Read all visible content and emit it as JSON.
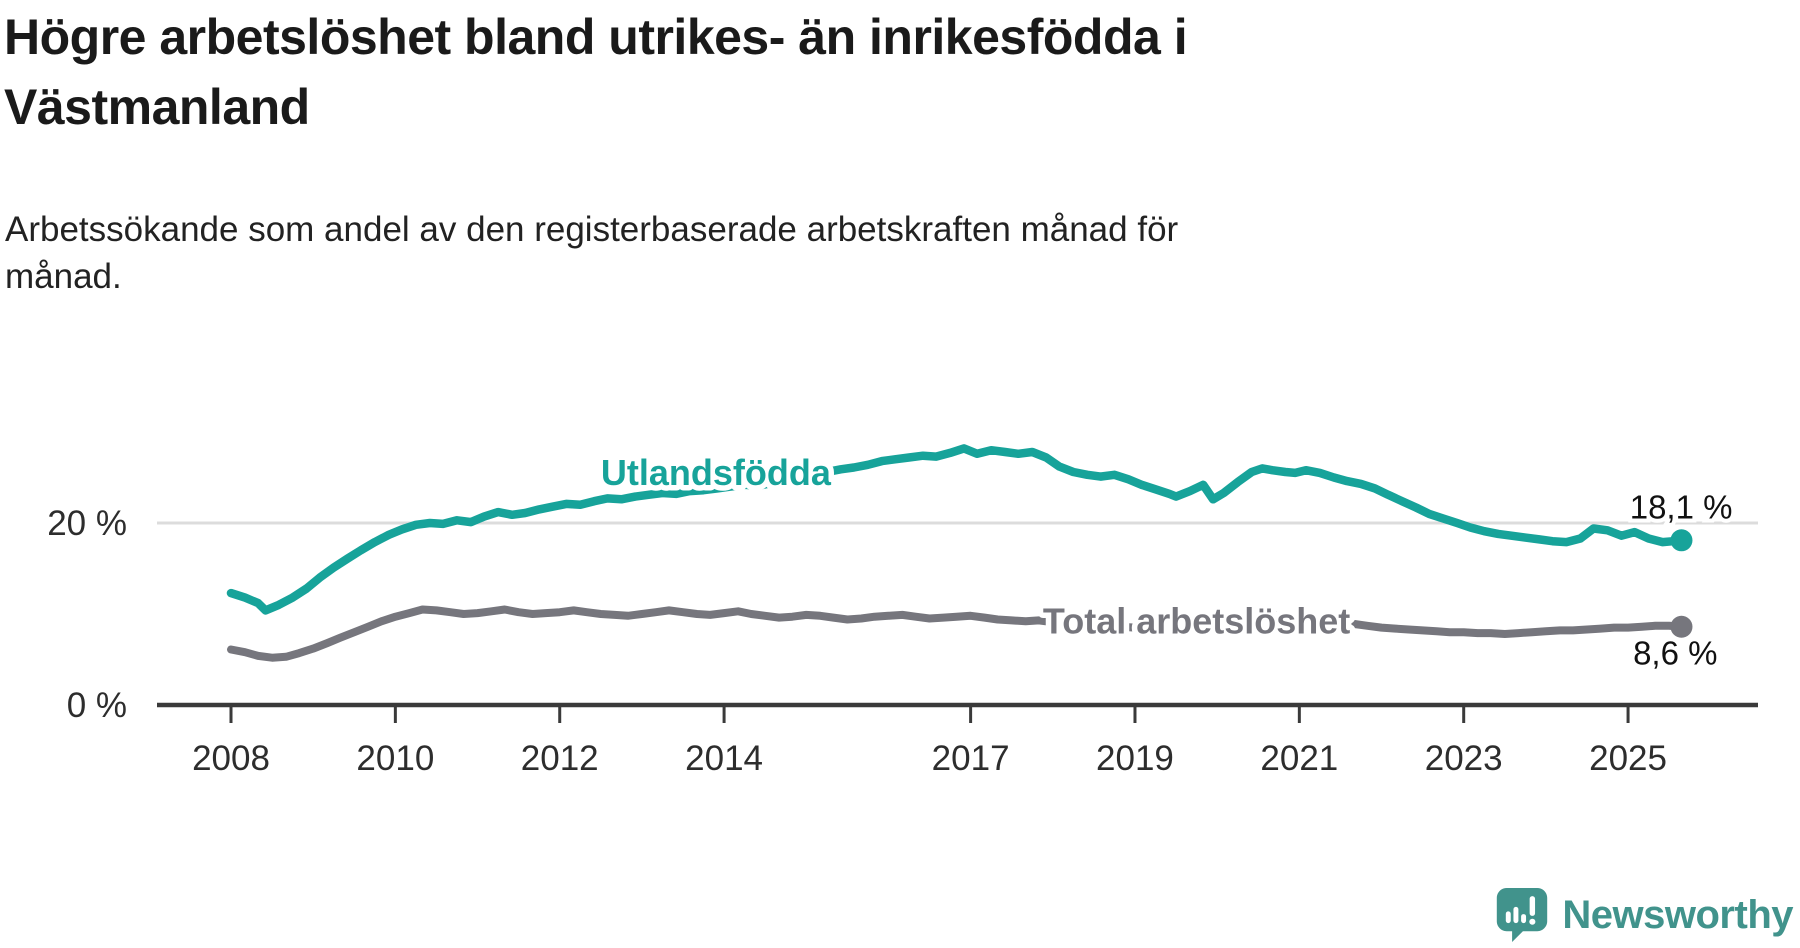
{
  "page": {
    "title": "Högre arbetslöshet bland utrikes- än inrikesfödda i Västmanland",
    "subtitle": "Arbetssökande som andel av den registerbaserade arbetskraften månad för månad."
  },
  "branding": {
    "logo_text": "Newsworthy",
    "logo_icon": "speech-bubble-bar-chart-exclamation"
  },
  "colors": {
    "accent_teal": "#17a39a",
    "line_gray": "#76767d",
    "grid": "#dcdcdc",
    "axis": "#3a3a3a",
    "tick_text": "#2d2d2d",
    "value_text": "#111111",
    "logo_teal": "#41938c"
  },
  "chart_data": {
    "type": "line",
    "title": "Högre arbetslöshet bland utrikes- än inrikesfödda i Västmanland",
    "subtitle": "Arbetssökande som andel av den registerbaserade arbetskraften månad för månad.",
    "unit": "%",
    "grid": "horizontal-at-20-only",
    "legend_position": "inline-labels",
    "x_axis": {
      "range": [
        2007.1,
        2026.6
      ],
      "ticks": [
        {
          "value": 2008,
          "label": "2008"
        },
        {
          "value": 2010,
          "label": "2010"
        },
        {
          "value": 2012,
          "label": "2012"
        },
        {
          "value": 2014,
          "label": "2014"
        },
        {
          "value": 2017,
          "label": "2017"
        },
        {
          "value": 2019,
          "label": "2019"
        },
        {
          "value": 2021,
          "label": "2021"
        },
        {
          "value": 2023,
          "label": "2023"
        },
        {
          "value": 2025,
          "label": "2025"
        }
      ]
    },
    "y_axis": {
      "range": [
        0,
        30
      ],
      "ticks": [
        {
          "value": 0,
          "label": "0 %"
        },
        {
          "value": 20,
          "label": "20 %"
        }
      ]
    },
    "series": [
      {
        "name": "Utlandsfödda",
        "color": "#17a39a",
        "end_label": "18,1 %",
        "end_value": 18.1,
        "points": [
          [
            2008.0,
            12.3
          ],
          [
            2008.17,
            11.8
          ],
          [
            2008.33,
            11.2
          ],
          [
            2008.42,
            10.4
          ],
          [
            2008.58,
            11.0
          ],
          [
            2008.75,
            11.8
          ],
          [
            2008.92,
            12.8
          ],
          [
            2009.08,
            14.0
          ],
          [
            2009.25,
            15.1
          ],
          [
            2009.42,
            16.1
          ],
          [
            2009.58,
            17.0
          ],
          [
            2009.75,
            17.9
          ],
          [
            2009.92,
            18.7
          ],
          [
            2010.08,
            19.3
          ],
          [
            2010.25,
            19.8
          ],
          [
            2010.42,
            20.0
          ],
          [
            2010.58,
            19.9
          ],
          [
            2010.75,
            20.3
          ],
          [
            2010.92,
            20.1
          ],
          [
            2011.08,
            20.7
          ],
          [
            2011.25,
            21.2
          ],
          [
            2011.42,
            20.9
          ],
          [
            2011.58,
            21.1
          ],
          [
            2011.75,
            21.5
          ],
          [
            2011.92,
            21.8
          ],
          [
            2012.08,
            22.1
          ],
          [
            2012.25,
            22.0
          ],
          [
            2012.42,
            22.4
          ],
          [
            2012.58,
            22.7
          ],
          [
            2012.75,
            22.6
          ],
          [
            2012.92,
            22.9
          ],
          [
            2013.08,
            23.1
          ],
          [
            2013.25,
            23.3
          ],
          [
            2013.42,
            23.2
          ],
          [
            2013.58,
            23.5
          ],
          [
            2013.75,
            23.6
          ],
          [
            2013.92,
            23.8
          ],
          [
            2014.08,
            24.0
          ],
          [
            2014.25,
            24.2
          ],
          [
            2014.42,
            24.1
          ],
          [
            2014.58,
            24.4
          ],
          [
            2014.75,
            24.7
          ],
          [
            2014.92,
            25.0
          ],
          [
            2015.08,
            25.3
          ],
          [
            2015.25,
            25.6
          ],
          [
            2015.42,
            25.9
          ],
          [
            2015.58,
            26.1
          ],
          [
            2015.75,
            26.4
          ],
          [
            2015.92,
            26.8
          ],
          [
            2016.08,
            27.0
          ],
          [
            2016.25,
            27.2
          ],
          [
            2016.42,
            27.4
          ],
          [
            2016.58,
            27.3
          ],
          [
            2016.75,
            27.7
          ],
          [
            2016.92,
            28.2
          ],
          [
            2017.08,
            27.6
          ],
          [
            2017.25,
            28.0
          ],
          [
            2017.42,
            27.8
          ],
          [
            2017.58,
            27.6
          ],
          [
            2017.75,
            27.8
          ],
          [
            2017.92,
            27.2
          ],
          [
            2018.08,
            26.2
          ],
          [
            2018.25,
            25.6
          ],
          [
            2018.42,
            25.3
          ],
          [
            2018.58,
            25.1
          ],
          [
            2018.75,
            25.3
          ],
          [
            2018.92,
            24.8
          ],
          [
            2019.08,
            24.2
          ],
          [
            2019.25,
            23.7
          ],
          [
            2019.42,
            23.2
          ],
          [
            2019.5,
            22.9
          ],
          [
            2019.67,
            23.5
          ],
          [
            2019.83,
            24.2
          ],
          [
            2019.95,
            22.6
          ],
          [
            2020.08,
            23.3
          ],
          [
            2020.25,
            24.5
          ],
          [
            2020.42,
            25.6
          ],
          [
            2020.55,
            26.0
          ],
          [
            2020.67,
            25.8
          ],
          [
            2020.83,
            25.6
          ],
          [
            2020.95,
            25.5
          ],
          [
            2021.08,
            25.8
          ],
          [
            2021.25,
            25.5
          ],
          [
            2021.42,
            25.0
          ],
          [
            2021.58,
            24.6
          ],
          [
            2021.75,
            24.3
          ],
          [
            2021.92,
            23.8
          ],
          [
            2022.08,
            23.1
          ],
          [
            2022.25,
            22.4
          ],
          [
            2022.42,
            21.7
          ],
          [
            2022.58,
            21.0
          ],
          [
            2022.75,
            20.5
          ],
          [
            2022.92,
            20.0
          ],
          [
            2023.08,
            19.5
          ],
          [
            2023.25,
            19.1
          ],
          [
            2023.42,
            18.8
          ],
          [
            2023.58,
            18.6
          ],
          [
            2023.75,
            18.4
          ],
          [
            2023.92,
            18.2
          ],
          [
            2024.08,
            18.0
          ],
          [
            2024.25,
            17.9
          ],
          [
            2024.42,
            18.3
          ],
          [
            2024.58,
            19.4
          ],
          [
            2024.75,
            19.2
          ],
          [
            2024.92,
            18.6
          ],
          [
            2025.08,
            19.0
          ],
          [
            2025.25,
            18.3
          ],
          [
            2025.42,
            17.9
          ],
          [
            2025.55,
            18.0
          ],
          [
            2025.65,
            18.1
          ]
        ]
      },
      {
        "name": "Total arbetslöshet",
        "color": "#76767d",
        "end_label": "8,6 %",
        "end_value": 8.6,
        "points": [
          [
            2008.0,
            6.1
          ],
          [
            2008.17,
            5.8
          ],
          [
            2008.33,
            5.4
          ],
          [
            2008.5,
            5.2
          ],
          [
            2008.67,
            5.3
          ],
          [
            2008.83,
            5.7
          ],
          [
            2009.0,
            6.2
          ],
          [
            2009.17,
            6.8
          ],
          [
            2009.33,
            7.4
          ],
          [
            2009.5,
            8.0
          ],
          [
            2009.67,
            8.6
          ],
          [
            2009.83,
            9.2
          ],
          [
            2010.0,
            9.7
          ],
          [
            2010.17,
            10.1
          ],
          [
            2010.33,
            10.5
          ],
          [
            2010.5,
            10.4
          ],
          [
            2010.67,
            10.2
          ],
          [
            2010.83,
            10.0
          ],
          [
            2011.0,
            10.1
          ],
          [
            2011.17,
            10.3
          ],
          [
            2011.33,
            10.5
          ],
          [
            2011.5,
            10.2
          ],
          [
            2011.67,
            10.0
          ],
          [
            2011.83,
            10.1
          ],
          [
            2012.0,
            10.2
          ],
          [
            2012.17,
            10.4
          ],
          [
            2012.33,
            10.2
          ],
          [
            2012.5,
            10.0
          ],
          [
            2012.67,
            9.9
          ],
          [
            2012.83,
            9.8
          ],
          [
            2013.0,
            10.0
          ],
          [
            2013.17,
            10.2
          ],
          [
            2013.33,
            10.4
          ],
          [
            2013.5,
            10.2
          ],
          [
            2013.67,
            10.0
          ],
          [
            2013.83,
            9.9
          ],
          [
            2014.0,
            10.1
          ],
          [
            2014.17,
            10.3
          ],
          [
            2014.33,
            10.0
          ],
          [
            2014.5,
            9.8
          ],
          [
            2014.67,
            9.6
          ],
          [
            2014.83,
            9.7
          ],
          [
            2015.0,
            9.9
          ],
          [
            2015.17,
            9.8
          ],
          [
            2015.33,
            9.6
          ],
          [
            2015.5,
            9.4
          ],
          [
            2015.67,
            9.5
          ],
          [
            2015.83,
            9.7
          ],
          [
            2016.0,
            9.8
          ],
          [
            2016.17,
            9.9
          ],
          [
            2016.33,
            9.7
          ],
          [
            2016.5,
            9.5
          ],
          [
            2016.67,
            9.6
          ],
          [
            2016.83,
            9.7
          ],
          [
            2017.0,
            9.8
          ],
          [
            2017.17,
            9.6
          ],
          [
            2017.33,
            9.4
          ],
          [
            2017.5,
            9.3
          ],
          [
            2017.67,
            9.2
          ],
          [
            2017.83,
            9.3
          ],
          [
            2018.0,
            9.1
          ],
          [
            2018.17,
            8.9
          ],
          [
            2018.33,
            8.8
          ],
          [
            2018.5,
            8.7
          ],
          [
            2018.67,
            8.8
          ],
          [
            2018.83,
            8.6
          ],
          [
            2019.0,
            8.5
          ],
          [
            2019.17,
            8.6
          ],
          [
            2019.33,
            8.7
          ],
          [
            2019.5,
            8.8
          ],
          [
            2019.67,
            8.8
          ],
          [
            2019.83,
            8.9
          ],
          [
            2020.0,
            9.0
          ],
          [
            2020.17,
            9.5
          ],
          [
            2020.33,
            9.9
          ],
          [
            2020.5,
            10.0
          ],
          [
            2020.67,
            9.9
          ],
          [
            2020.83,
            9.7
          ],
          [
            2021.0,
            9.6
          ],
          [
            2021.17,
            9.4
          ],
          [
            2021.33,
            9.2
          ],
          [
            2021.5,
            9.0
          ],
          [
            2021.67,
            8.9
          ],
          [
            2021.83,
            8.7
          ],
          [
            2022.0,
            8.5
          ],
          [
            2022.17,
            8.4
          ],
          [
            2022.33,
            8.3
          ],
          [
            2022.5,
            8.2
          ],
          [
            2022.67,
            8.1
          ],
          [
            2022.83,
            8.0
          ],
          [
            2023.0,
            8.0
          ],
          [
            2023.17,
            7.9
          ],
          [
            2023.33,
            7.9
          ],
          [
            2023.5,
            7.8
          ],
          [
            2023.67,
            7.9
          ],
          [
            2023.83,
            8.0
          ],
          [
            2024.0,
            8.1
          ],
          [
            2024.17,
            8.2
          ],
          [
            2024.33,
            8.2
          ],
          [
            2024.5,
            8.3
          ],
          [
            2024.67,
            8.4
          ],
          [
            2024.83,
            8.5
          ],
          [
            2025.0,
            8.5
          ],
          [
            2025.17,
            8.6
          ],
          [
            2025.33,
            8.7
          ],
          [
            2025.5,
            8.7
          ],
          [
            2025.65,
            8.6
          ]
        ]
      }
    ],
    "annotations": [
      {
        "text": "Utlandsfödda",
        "x": 2013.9,
        "y": 25.6,
        "color": "#17a39a"
      },
      {
        "text": "Total arbetslöshet",
        "x": 2019.75,
        "y": 9.3,
        "color": "#76767d"
      }
    ]
  }
}
